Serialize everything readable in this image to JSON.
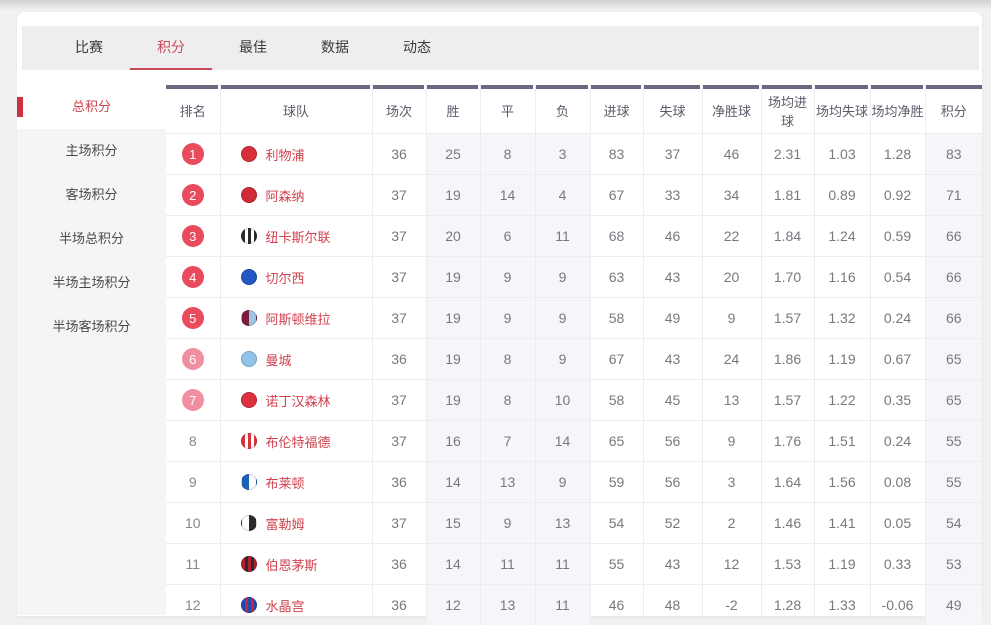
{
  "tabs": {
    "items": [
      {
        "id": "matches",
        "label": "比赛",
        "active": false
      },
      {
        "id": "standings",
        "label": "积分",
        "active": true
      },
      {
        "id": "best",
        "label": "最佳",
        "active": false
      },
      {
        "id": "stats",
        "label": "数据",
        "active": false
      },
      {
        "id": "news",
        "label": "动态",
        "active": false
      }
    ]
  },
  "sidebar": {
    "items": [
      {
        "id": "total",
        "label": "总积分",
        "active": true
      },
      {
        "id": "home",
        "label": "主场积分",
        "active": false
      },
      {
        "id": "away",
        "label": "客场积分",
        "active": false
      },
      {
        "id": "half-total",
        "label": "半场总积分",
        "active": false
      },
      {
        "id": "half-home",
        "label": "半场主场积分",
        "active": false
      },
      {
        "id": "half-away",
        "label": "半场客场积分",
        "active": false
      }
    ]
  },
  "table": {
    "columns": [
      "排名",
      "球队",
      "场次",
      "胜",
      "平",
      "负",
      "进球",
      "失球",
      "净胜球",
      "场均进球",
      "场均失球",
      "场均净胜",
      "积分"
    ],
    "light_value_indexes": [
      1,
      2,
      3,
      10
    ],
    "rows": [
      {
        "rank": "1",
        "badge": "red",
        "team": "利物浦",
        "crest": {
          "style": "solid",
          "colors": [
            "#d6313b",
            "#d6313b"
          ]
        },
        "values": [
          "36",
          "25",
          "8",
          "3",
          "83",
          "37",
          "46",
          "2.31",
          "1.03",
          "1.28",
          "83"
        ]
      },
      {
        "rank": "2",
        "badge": "red",
        "team": "阿森纳",
        "crest": {
          "style": "solid",
          "colors": [
            "#ce2b37",
            "#ce2b37"
          ]
        },
        "values": [
          "37",
          "19",
          "14",
          "4",
          "67",
          "33",
          "34",
          "1.81",
          "0.89",
          "0.92",
          "71"
        ]
      },
      {
        "rank": "3",
        "badge": "red",
        "team": "纽卡斯尔联",
        "crest": {
          "style": "stripes",
          "colors": [
            "#2b2b2b",
            "#ffffff"
          ]
        },
        "values": [
          "37",
          "20",
          "6",
          "11",
          "68",
          "46",
          "22",
          "1.84",
          "1.24",
          "0.59",
          "66"
        ]
      },
      {
        "rank": "4",
        "badge": "red",
        "team": "切尔西",
        "crest": {
          "style": "solid",
          "colors": [
            "#2456c5",
            "#2456c5"
          ]
        },
        "values": [
          "37",
          "19",
          "9",
          "9",
          "63",
          "43",
          "20",
          "1.70",
          "1.16",
          "0.54",
          "66"
        ]
      },
      {
        "rank": "5",
        "badge": "red",
        "team": "阿斯顿维拉",
        "crest": {
          "style": "half",
          "colors": [
            "#7a1e3c",
            "#9ec4e8"
          ]
        },
        "values": [
          "37",
          "19",
          "9",
          "9",
          "58",
          "49",
          "9",
          "1.57",
          "1.32",
          "0.24",
          "66"
        ]
      },
      {
        "rank": "6",
        "badge": "pink",
        "team": "曼城",
        "crest": {
          "style": "solid",
          "colors": [
            "#8fc3e8",
            "#8fc3e8"
          ]
        },
        "values": [
          "36",
          "19",
          "8",
          "9",
          "67",
          "43",
          "24",
          "1.86",
          "1.19",
          "0.67",
          "65"
        ]
      },
      {
        "rank": "7",
        "badge": "pink",
        "team": "诺丁汉森林",
        "crest": {
          "style": "solid",
          "colors": [
            "#dd2f3f",
            "#dd2f3f"
          ]
        },
        "values": [
          "37",
          "19",
          "8",
          "10",
          "58",
          "45",
          "13",
          "1.57",
          "1.22",
          "0.35",
          "65"
        ]
      },
      {
        "rank": "8",
        "badge": "none",
        "team": "布伦特福德",
        "crest": {
          "style": "stripes",
          "colors": [
            "#d8343e",
            "#ffffff"
          ]
        },
        "values": [
          "37",
          "16",
          "7",
          "14",
          "65",
          "56",
          "9",
          "1.76",
          "1.51",
          "0.24",
          "55"
        ]
      },
      {
        "rank": "9",
        "badge": "none",
        "team": "布莱顿",
        "crest": {
          "style": "half",
          "colors": [
            "#1b63b7",
            "#ffffff"
          ]
        },
        "values": [
          "36",
          "14",
          "13",
          "9",
          "59",
          "56",
          "3",
          "1.64",
          "1.56",
          "0.08",
          "55"
        ]
      },
      {
        "rank": "10",
        "badge": "none",
        "team": "富勒姆",
        "crest": {
          "style": "half",
          "colors": [
            "#ffffff",
            "#2b2b2b"
          ]
        },
        "values": [
          "37",
          "15",
          "9",
          "13",
          "54",
          "52",
          "2",
          "1.46",
          "1.41",
          "0.05",
          "54"
        ]
      },
      {
        "rank": "11",
        "badge": "none",
        "team": "伯恩茅斯",
        "crest": {
          "style": "stripes",
          "colors": [
            "#b41e2e",
            "#2b2b2b"
          ]
        },
        "values": [
          "36",
          "14",
          "11",
          "11",
          "55",
          "43",
          "12",
          "1.53",
          "1.19",
          "0.33",
          "53"
        ]
      },
      {
        "rank": "12",
        "badge": "none",
        "team": "水晶宫",
        "crest": {
          "style": "stripes",
          "colors": [
            "#1c4bb4",
            "#c0273d"
          ]
        },
        "values": [
          "36",
          "12",
          "13",
          "11",
          "46",
          "48",
          "-2",
          "1.28",
          "1.33",
          "-0.06",
          "49"
        ]
      }
    ]
  },
  "colors": {
    "accent_red": "#c94c5c",
    "badge_red": "#e94b5c",
    "badge_pink": "#f08fa0",
    "header_strip": "#6a677f",
    "light_column_bg": "#f5f5fa",
    "team_text": "#d0424f",
    "tabbar_bg": "#eeeeee",
    "sidebar_bg": "#f5f5f7"
  }
}
